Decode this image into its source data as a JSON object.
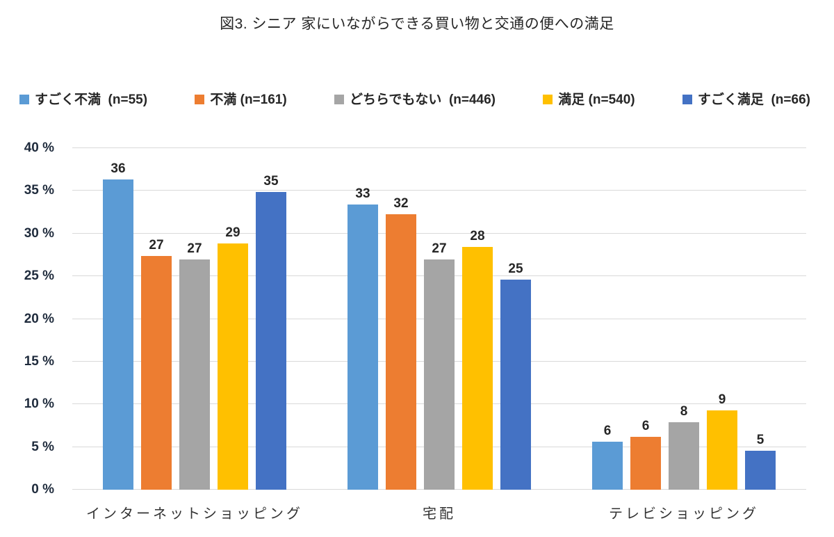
{
  "title": {
    "text": "図3. シニア  家にいながらできる買い物と交通の便への満足"
  },
  "chart_data": {
    "type": "bar",
    "title": "図3. シニア  家にいながらできる買い物と交通の便への満足",
    "categories": [
      "インターネットショッピング",
      "宅配",
      "テレビショッピング"
    ],
    "series": [
      {
        "name": "すごく不満",
        "n": 55,
        "legend_label": "すごく不満  (n=55)",
        "color": "#5B9BD5",
        "values": [
          36,
          33,
          6
        ],
        "bar_heights_pct": [
          36.3,
          33.4,
          5.6
        ]
      },
      {
        "name": "不満",
        "n": 161,
        "legend_label": "不満 (n=161)",
        "color": "#ED7D31",
        "values": [
          27,
          32,
          6
        ],
        "bar_heights_pct": [
          27.4,
          32.3,
          6.2
        ]
      },
      {
        "name": "どちらでもない",
        "n": 446,
        "legend_label": "どちらでもない  (n=446)",
        "color": "#A5A5A5",
        "values": [
          27,
          27,
          8
        ],
        "bar_heights_pct": [
          27.0,
          27.0,
          7.9
        ]
      },
      {
        "name": "満足",
        "n": 540,
        "legend_label": "満足 (n=540)",
        "color": "#FFC000",
        "values": [
          29,
          28,
          9
        ],
        "bar_heights_pct": [
          28.8,
          28.4,
          9.3
        ]
      },
      {
        "name": "すごく満足",
        "n": 66,
        "legend_label": "すごく満足  (n=66)",
        "color": "#4472C4",
        "values": [
          35,
          25,
          5
        ],
        "bar_heights_pct": [
          34.9,
          24.6,
          4.6
        ]
      }
    ],
    "ylabel": "%",
    "ylim": [
      0,
      40
    ],
    "ytick_step": 5,
    "ytick_suffix": " %",
    "yticks": [
      "0 %",
      "5 %",
      "10 %",
      "15 %",
      "20 %",
      "25 %",
      "30 %",
      "35 %",
      "40 %"
    ],
    "grid": true,
    "legend_position": "top",
    "colors": {
      "background": "#ffffff",
      "gridline": "#d9d9d9",
      "axis_label": "#1f2b3c",
      "data_label": "#262626",
      "category_label": "#333333",
      "title": "#262626"
    }
  }
}
